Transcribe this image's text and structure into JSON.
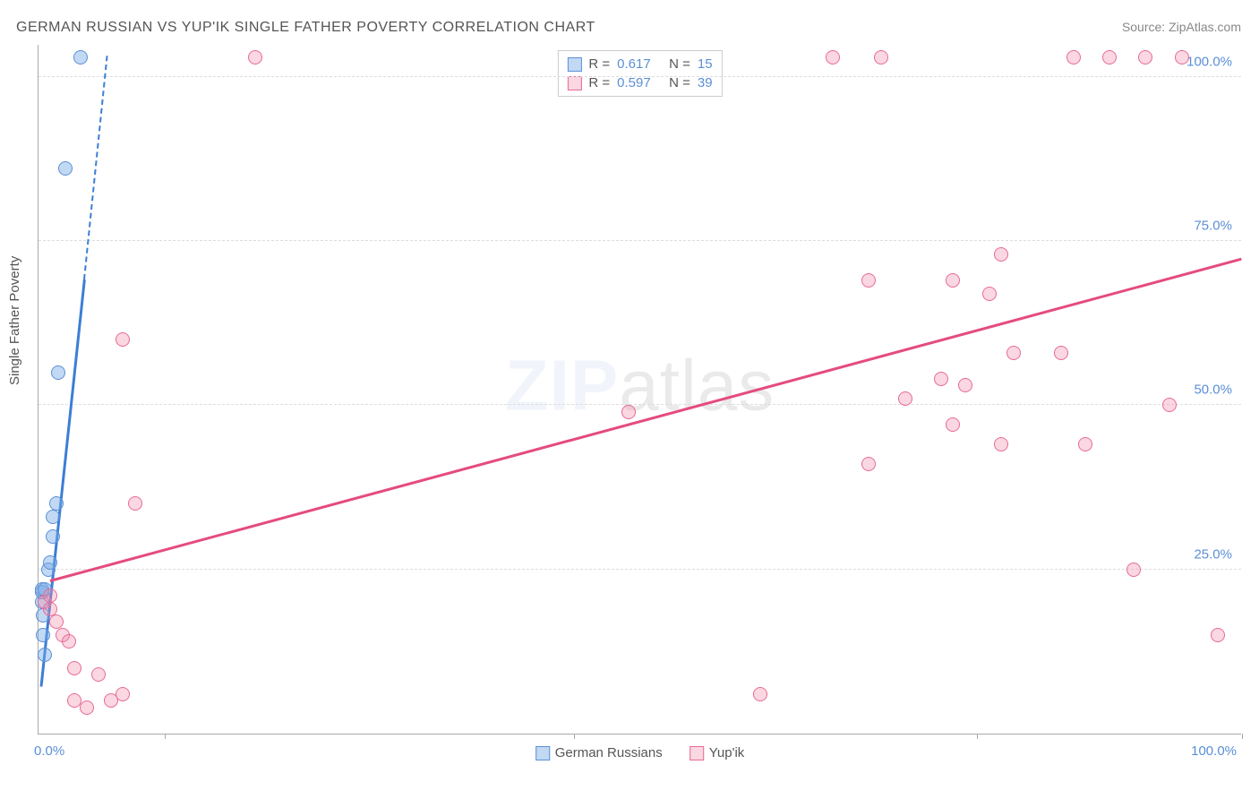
{
  "title": "GERMAN RUSSIAN VS YUP'IK SINGLE FATHER POVERTY CORRELATION CHART",
  "source": "Source: ZipAtlas.com",
  "ylabel": "Single Father Poverty",
  "watermark_a": "ZIP",
  "watermark_b": "atlas",
  "chart": {
    "type": "scatter",
    "xlim": [
      0,
      100
    ],
    "ylim": [
      0,
      105
    ],
    "xticks_pct": [
      10.5,
      44.5,
      78,
      100
    ],
    "xlabels": {
      "min": "0.0%",
      "max": "100.0%"
    },
    "yticks": [
      {
        "v": 25,
        "label": "25.0%"
      },
      {
        "v": 50,
        "label": "50.0%"
      },
      {
        "v": 75,
        "label": "75.0%"
      },
      {
        "v": 100,
        "label": "100.0%"
      }
    ],
    "grid_color": "#dddddd",
    "background_color": "#ffffff",
    "series": [
      {
        "name": "German Russians",
        "color_fill": "rgba(120,170,230,0.45)",
        "color_stroke": "#5b8fd6",
        "color_line": "#3b7ed6",
        "R": "0.617",
        "N": "15",
        "trend": {
          "x1": 0.2,
          "y1": 7,
          "x2": 3.8,
          "y2": 69,
          "extend_to_x": 5.7,
          "extend_to_y": 103
        },
        "points": [
          {
            "x": 0.3,
            "y": 20
          },
          {
            "x": 0.3,
            "y": 21.5
          },
          {
            "x": 0.3,
            "y": 22
          },
          {
            "x": 0.5,
            "y": 22
          },
          {
            "x": 0.4,
            "y": 18
          },
          {
            "x": 0.4,
            "y": 15
          },
          {
            "x": 0.5,
            "y": 12
          },
          {
            "x": 0.8,
            "y": 25
          },
          {
            "x": 1.0,
            "y": 26
          },
          {
            "x": 1.2,
            "y": 30
          },
          {
            "x": 1.2,
            "y": 33
          },
          {
            "x": 1.5,
            "y": 35
          },
          {
            "x": 1.6,
            "y": 55
          },
          {
            "x": 2.2,
            "y": 86
          },
          {
            "x": 3.5,
            "y": 103
          }
        ]
      },
      {
        "name": "Yup'ik",
        "color_fill": "rgba(240,140,170,0.35)",
        "color_stroke": "#e76a97",
        "color_line": "#e54b7e",
        "R": "0.597",
        "N": "39",
        "trend": {
          "x1": 1,
          "y1": 23,
          "x2": 100,
          "y2": 72
        },
        "points": [
          {
            "x": 0.5,
            "y": 20
          },
          {
            "x": 1,
            "y": 21
          },
          {
            "x": 1,
            "y": 19
          },
          {
            "x": 1.5,
            "y": 17
          },
          {
            "x": 2,
            "y": 15
          },
          {
            "x": 2.5,
            "y": 14
          },
          {
            "x": 3,
            "y": 10
          },
          {
            "x": 3,
            "y": 5
          },
          {
            "x": 4,
            "y": 4
          },
          {
            "x": 5,
            "y": 9
          },
          {
            "x": 6,
            "y": 5
          },
          {
            "x": 7,
            "y": 6
          },
          {
            "x": 8,
            "y": 35
          },
          {
            "x": 7,
            "y": 60
          },
          {
            "x": 18,
            "y": 103
          },
          {
            "x": 49,
            "y": 49
          },
          {
            "x": 60,
            "y": 6
          },
          {
            "x": 66,
            "y": 103
          },
          {
            "x": 69,
            "y": 69
          },
          {
            "x": 69,
            "y": 41
          },
          {
            "x": 70,
            "y": 103
          },
          {
            "x": 72,
            "y": 51
          },
          {
            "x": 75,
            "y": 54
          },
          {
            "x": 76,
            "y": 69
          },
          {
            "x": 76,
            "y": 47
          },
          {
            "x": 77,
            "y": 53
          },
          {
            "x": 79,
            "y": 67
          },
          {
            "x": 80,
            "y": 73
          },
          {
            "x": 81,
            "y": 58
          },
          {
            "x": 80,
            "y": 44
          },
          {
            "x": 85,
            "y": 58
          },
          {
            "x": 86,
            "y": 103
          },
          {
            "x": 87,
            "y": 44
          },
          {
            "x": 89,
            "y": 103
          },
          {
            "x": 91,
            "y": 25
          },
          {
            "x": 92,
            "y": 103
          },
          {
            "x": 94,
            "y": 50
          },
          {
            "x": 95,
            "y": 103
          },
          {
            "x": 98,
            "y": 15
          }
        ]
      }
    ]
  },
  "stats_labels": {
    "R": "R =",
    "N": "N ="
  },
  "legend": [
    {
      "label": "German Russians",
      "fill": "rgba(120,170,230,0.45)",
      "stroke": "#5b8fd6"
    },
    {
      "label": "Yup'ik",
      "fill": "rgba(240,140,170,0.35)",
      "stroke": "#e76a97"
    }
  ]
}
